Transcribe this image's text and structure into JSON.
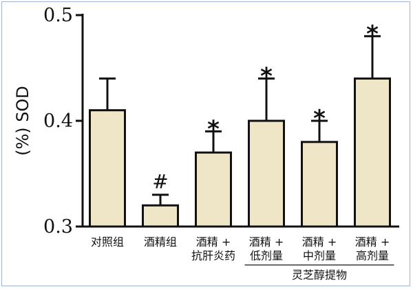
{
  "chart_data": {
    "type": "bar",
    "ylabel": "(%) SOD",
    "ylim": [
      0.3,
      0.5
    ],
    "yticks": [
      "0.3",
      "0.4",
      "0.5"
    ],
    "ytick_values": [
      0.3,
      0.4,
      0.5
    ],
    "grid": false,
    "bar_color": "#efe6c8",
    "categories": [
      [
        "对照组"
      ],
      [
        "酒精组"
      ],
      [
        "酒精 +",
        "抗肝炎药"
      ],
      [
        "酒精 +",
        "低剂量"
      ],
      [
        "酒精 +",
        "中剂量"
      ],
      [
        "酒精 +",
        "高剂量"
      ]
    ],
    "values": [
      0.41,
      0.32,
      0.37,
      0.4,
      0.38,
      0.44
    ],
    "errors": [
      0.03,
      0.01,
      0.02,
      0.04,
      0.02,
      0.04
    ],
    "annotations": [
      "",
      "#",
      "*",
      "*",
      "*",
      "*"
    ],
    "group_label": "灵芝醇提物",
    "group_span": [
      3,
      5
    ]
  }
}
